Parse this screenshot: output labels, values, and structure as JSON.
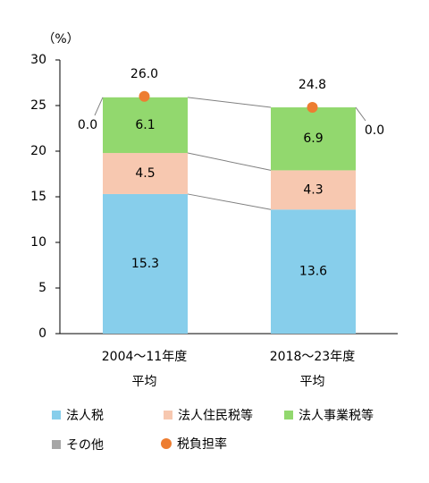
{
  "chart_data": {
    "type": "bar",
    "stacked": true,
    "unit_label": "（%）",
    "ylim": [
      0,
      30
    ],
    "yticks": [
      0,
      5,
      10,
      15,
      20,
      25,
      30
    ],
    "categories": [
      {
        "line1": "2004～11年度",
        "line2": "平均"
      },
      {
        "line1": "2018～23年度",
        "line2": "平均"
      }
    ],
    "series": [
      {
        "name": "法人税",
        "values": [
          15.3,
          13.6
        ],
        "labels": [
          "15.3",
          "13.6"
        ],
        "color": "#87CEEB"
      },
      {
        "name": "法人住民税等",
        "values": [
          4.5,
          4.3
        ],
        "labels": [
          "4.5",
          "4.3"
        ],
        "color": "#F7C8B0"
      },
      {
        "name": "法人事業税等",
        "values": [
          6.1,
          6.9
        ],
        "labels": [
          "6.1",
          "6.9"
        ],
        "color": "#92D86E"
      },
      {
        "name": "その他",
        "values": [
          0.0,
          0.0
        ],
        "labels": [
          "0.0",
          "0.0"
        ],
        "color": "#A6A6A6"
      }
    ],
    "line_series": {
      "name": "税負担率",
      "values": [
        26.0,
        24.8
      ],
      "labels": [
        "26.0",
        "24.8"
      ],
      "color": "#ED7D31"
    }
  }
}
